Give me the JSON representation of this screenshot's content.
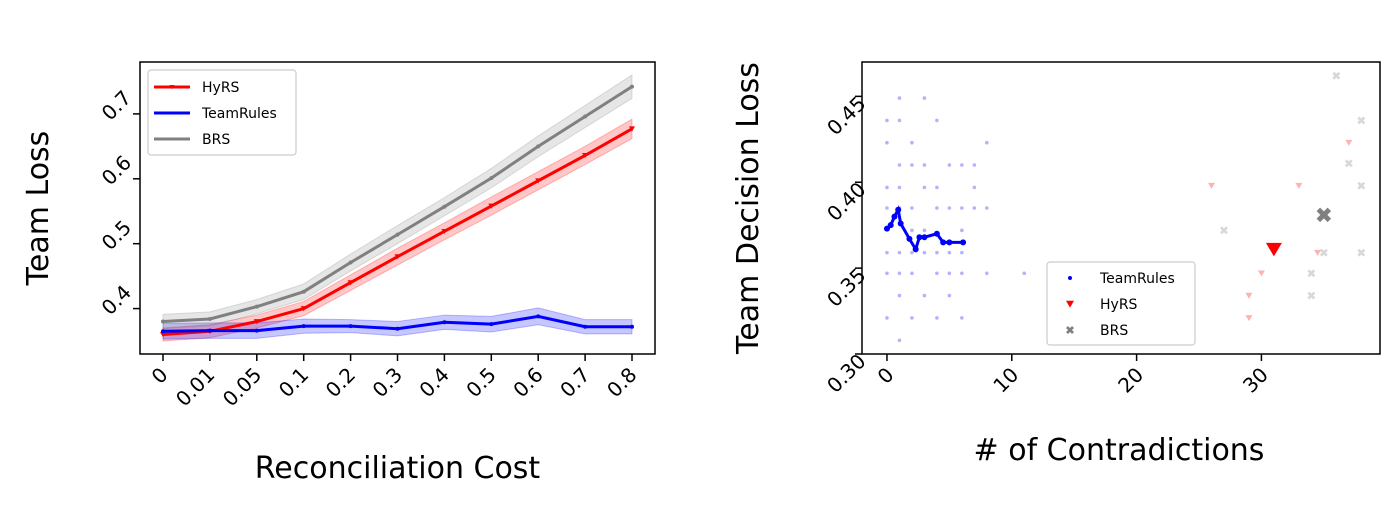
{
  "chart_data": [
    {
      "type": "line",
      "title": "",
      "xlabel": "Reconciliation Cost",
      "ylabel": "Team Loss",
      "categories": [
        "0",
        "0.01",
        "0.05",
        "0.1",
        "0.2",
        "0.3",
        "0.4",
        "0.5",
        "0.6",
        "0.7",
        "0.8"
      ],
      "ylim": [
        0.33,
        0.78
      ],
      "yticks": [
        "0.4",
        "0.5",
        "0.6",
        "0.7"
      ],
      "ytick_values": [
        0.4,
        0.5,
        0.6,
        0.7
      ],
      "grid": false,
      "legend_position": "top-left",
      "series": [
        {
          "name": "HyRS",
          "color": "#ff0000",
          "marker": "triangle-down",
          "values": [
            0.36,
            0.365,
            0.38,
            0.4,
            0.44,
            0.48,
            0.519,
            0.558,
            0.597,
            0.636,
            0.677
          ],
          "band": [
            0.01,
            0.01,
            0.01,
            0.011,
            0.012,
            0.013,
            0.013,
            0.014,
            0.014,
            0.014,
            0.015
          ]
        },
        {
          "name": "TeamRules",
          "color": "#0000ff",
          "marker": "dot",
          "values": [
            0.365,
            0.366,
            0.366,
            0.373,
            0.373,
            0.369,
            0.379,
            0.376,
            0.388,
            0.372,
            0.372
          ],
          "band": [
            0.012,
            0.012,
            0.012,
            0.011,
            0.01,
            0.011,
            0.011,
            0.012,
            0.013,
            0.011,
            0.011
          ]
        },
        {
          "name": "BRS",
          "color": "#808080",
          "marker": "dot",
          "values": [
            0.38,
            0.384,
            0.403,
            0.426,
            0.471,
            0.514,
            0.557,
            0.601,
            0.65,
            0.696,
            0.742
          ],
          "band": [
            0.011,
            0.011,
            0.011,
            0.012,
            0.013,
            0.014,
            0.014,
            0.015,
            0.016,
            0.017,
            0.018
          ]
        }
      ]
    },
    {
      "type": "scatter",
      "title": "",
      "xlabel": "# of Contradictions",
      "ylabel": "Team Decision Loss",
      "xlim": [
        -2,
        39.5
      ],
      "ylim": [
        0.3,
        0.47
      ],
      "xticks": [
        "0",
        "10",
        "20",
        "30"
      ],
      "xtick_values": [
        0,
        10,
        20,
        30
      ],
      "yticks": [
        "0.30",
        "0.35",
        "0.40",
        "0.45"
      ],
      "ytick_values": [
        0.3,
        0.35,
        0.4,
        0.45
      ],
      "grid": false,
      "legend_position": "lower-center",
      "series": [
        {
          "name": "TeamRules",
          "color": "#0000ff",
          "marker": "dot",
          "background_points": [
            [
              0,
              0.436
            ],
            [
              0,
              0.423
            ],
            [
              0,
              0.397
            ],
            [
              0,
              0.385
            ],
            [
              0,
              0.359
            ],
            [
              0,
              0.347
            ],
            [
              0,
              0.321
            ],
            [
              1,
              0.449
            ],
            [
              1,
              0.436
            ],
            [
              1,
              0.41
            ],
            [
              1,
              0.397
            ],
            [
              1,
              0.385
            ],
            [
              1,
              0.359
            ],
            [
              1,
              0.347
            ],
            [
              1,
              0.334
            ],
            [
              1,
              0.308
            ],
            [
              2,
              0.423
            ],
            [
              2,
              0.41
            ],
            [
              2,
              0.385
            ],
            [
              2,
              0.372
            ],
            [
              2,
              0.359
            ],
            [
              2,
              0.347
            ],
            [
              2,
              0.321
            ],
            [
              3,
              0.449
            ],
            [
              3,
              0.41
            ],
            [
              3,
              0.397
            ],
            [
              3,
              0.372
            ],
            [
              3,
              0.359
            ],
            [
              3,
              0.334
            ],
            [
              4,
              0.436
            ],
            [
              4,
              0.397
            ],
            [
              4,
              0.385
            ],
            [
              4,
              0.359
            ],
            [
              4,
              0.347
            ],
            [
              4,
              0.321
            ],
            [
              5,
              0.41
            ],
            [
              5,
              0.385
            ],
            [
              5,
              0.359
            ],
            [
              5,
              0.347
            ],
            [
              5,
              0.334
            ],
            [
              6,
              0.41
            ],
            [
              6,
              0.385
            ],
            [
              6,
              0.372
            ],
            [
              6,
              0.359
            ],
            [
              6,
              0.347
            ],
            [
              6,
              0.321
            ],
            [
              7,
              0.41
            ],
            [
              7,
              0.397
            ],
            [
              7,
              0.385
            ],
            [
              8,
              0.423
            ],
            [
              8,
              0.385
            ],
            [
              8,
              0.347
            ],
            [
              11,
              0.347
            ]
          ],
          "frontier": [
            [
              0,
              0.373
            ],
            [
              0.3,
              0.375
            ],
            [
              0.6,
              0.38
            ],
            [
              0.9,
              0.384
            ],
            [
              1.1,
              0.376
            ],
            [
              1.8,
              0.367
            ],
            [
              2.3,
              0.361
            ],
            [
              2.6,
              0.368
            ],
            [
              3,
              0.368
            ],
            [
              4,
              0.37
            ],
            [
              4.5,
              0.365
            ],
            [
              5,
              0.365
            ],
            [
              6.1,
              0.365
            ]
          ]
        },
        {
          "name": "HyRS",
          "color": "#ff0000",
          "marker": "triangle-down",
          "background_points": [
            [
              26,
              0.398
            ],
            [
              29,
              0.334
            ],
            [
              29,
              0.321
            ],
            [
              30,
              0.347
            ],
            [
              33,
              0.398
            ],
            [
              34.5,
              0.359
            ],
            [
              37,
              0.423
            ]
          ],
          "highlight": [
            31,
            0.361
          ]
        },
        {
          "name": "BRS",
          "color": "#808080",
          "marker": "x",
          "background_points": [
            [
              27,
              0.372
            ],
            [
              34,
              0.347
            ],
            [
              34,
              0.334
            ],
            [
              35,
              0.359
            ],
            [
              36,
              0.462
            ],
            [
              37,
              0.411
            ],
            [
              38,
              0.436
            ],
            [
              38,
              0.398
            ],
            [
              38,
              0.359
            ]
          ],
          "highlight": [
            35,
            0.381
          ]
        }
      ]
    }
  ]
}
